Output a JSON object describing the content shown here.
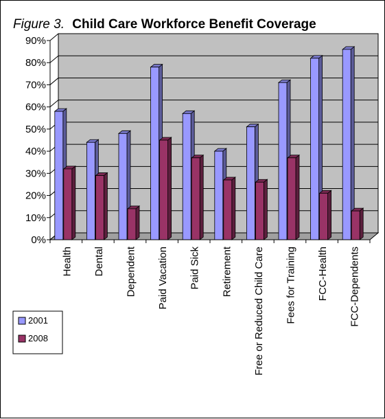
{
  "chart_data": {
    "type": "bar",
    "title_prefix": "Figure 3.",
    "title": "Child Care Workforce Benefit Coverage",
    "categories": [
      "Health",
      "Dental",
      "Dependent",
      "Paid Vacation",
      "Paid Sick",
      "Retirement",
      "Free or Reduced Child Care",
      "Fees for Training",
      "FCC-Health",
      "FCC-Dependents"
    ],
    "series": [
      {
        "name": "2001",
        "color": "#9999ff",
        "values": [
          58,
          44,
          48,
          78,
          57,
          40,
          51,
          71,
          82,
          86
        ]
      },
      {
        "name": "2008",
        "color": "#993366",
        "values": [
          32,
          29,
          14,
          45,
          37,
          27,
          26,
          37,
          21,
          13
        ]
      }
    ],
    "ylim": [
      0,
      90
    ],
    "yticks": [
      "0%",
      "10%",
      "20%",
      "30%",
      "40%",
      "50%",
      "60%",
      "70%",
      "80%",
      "90%"
    ],
    "grid": true,
    "legend_position": "left",
    "plot_background": "#c0c0c0"
  }
}
